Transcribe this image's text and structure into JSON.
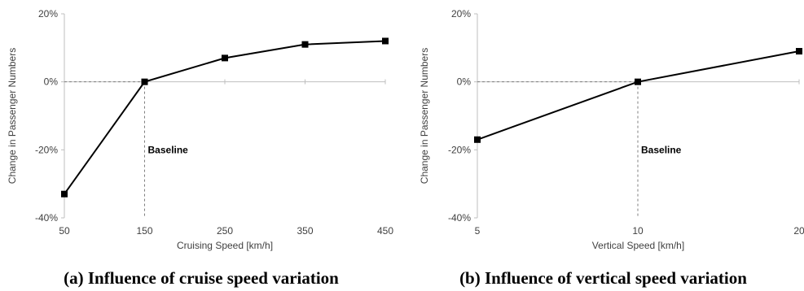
{
  "chart_data": [
    {
      "type": "line",
      "caption": "(a) Influence of cruise speed variation",
      "xlabel": "Cruising Speed [km/h]",
      "ylabel": "Change in Passenger Numbers",
      "x_scale": "linear",
      "xlim": [
        50,
        450
      ],
      "ylim": [
        -40,
        20
      ],
      "x_ticks": [
        "50",
        "150",
        "250",
        "350",
        "450"
      ],
      "y_ticks": [
        "20%",
        "0%",
        "-20%",
        "-40%"
      ],
      "grid": false,
      "baseline_label": "Baseline",
      "baseline_x": 150,
      "series": [
        {
          "x": [
            50,
            150,
            250,
            350,
            450
          ],
          "values": [
            -33,
            0,
            7,
            11,
            12
          ]
        }
      ]
    },
    {
      "type": "line",
      "caption": "(b) Influence of vertical speed variation",
      "xlabel": "Vertical Speed [km/h]",
      "ylabel": "Change in Passenger Numbers",
      "x_scale": "categorical",
      "xlim": [
        5,
        20
      ],
      "ylim": [
        -40,
        20
      ],
      "x_ticks": [
        "5",
        "10",
        "20"
      ],
      "y_ticks": [
        "20%",
        "0%",
        "-20%",
        "-40%"
      ],
      "grid": false,
      "baseline_label": "Baseline",
      "baseline_x": 10,
      "series": [
        {
          "x": [
            5,
            10,
            20
          ],
          "values": [
            -17,
            0,
            9
          ]
        }
      ]
    }
  ]
}
